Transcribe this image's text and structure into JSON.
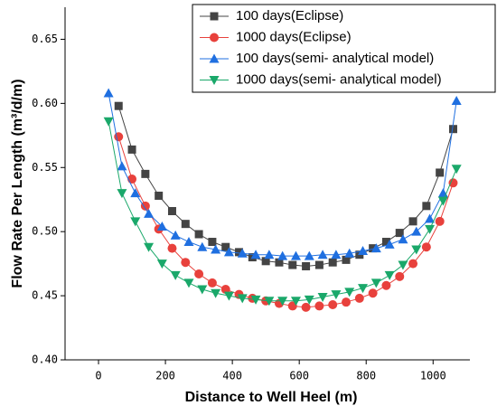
{
  "chart_data": {
    "type": "line",
    "xlabel": "Distance to Well Heel (m)",
    "ylabel": "Flow Rate Per Length (m³/d/m)",
    "xlim": [
      -100,
      1110
    ],
    "xticks": [
      0,
      200,
      400,
      600,
      800,
      1000
    ],
    "ylim": [
      0.4,
      0.675
    ],
    "yticks": [
      {
        "value": 0.4,
        "label": "0.40"
      },
      0.45,
      {
        "value": 0.5,
        "label": "0.50"
      },
      0.55,
      {
        "value": 0.6,
        "label": "0.60"
      },
      0.65
    ],
    "legend": "upper right",
    "series": [
      {
        "name": "100 days(Eclipse)",
        "color": "#444444",
        "marker": "square",
        "x": [
          60,
          100,
          140,
          180,
          220,
          260,
          300,
          340,
          380,
          420,
          460,
          500,
          540,
          580,
          620,
          660,
          700,
          740,
          780,
          820,
          860,
          900,
          940,
          980,
          1020,
          1060
        ],
        "values": [
          0.598,
          0.564,
          0.545,
          0.528,
          0.516,
          0.506,
          0.498,
          0.492,
          0.488,
          0.484,
          0.48,
          0.477,
          0.476,
          0.474,
          0.473,
          0.474,
          0.476,
          0.478,
          0.482,
          0.487,
          0.492,
          0.499,
          0.508,
          0.52,
          0.546,
          0.58
        ]
      },
      {
        "name": "1000 days(Eclipse)",
        "color": "#e8413c",
        "marker": "circle",
        "x": [
          60,
          100,
          140,
          180,
          220,
          260,
          300,
          340,
          380,
          420,
          460,
          500,
          540,
          580,
          620,
          660,
          700,
          740,
          780,
          820,
          860,
          900,
          940,
          980,
          1020,
          1060
        ],
        "values": [
          0.574,
          0.541,
          0.52,
          0.502,
          0.487,
          0.476,
          0.467,
          0.46,
          0.455,
          0.451,
          0.448,
          0.446,
          0.444,
          0.442,
          0.441,
          0.442,
          0.443,
          0.445,
          0.448,
          0.452,
          0.458,
          0.465,
          0.475,
          0.488,
          0.508,
          0.538
        ]
      },
      {
        "name": "100 days(semi- analytical model)",
        "color": "#1f6fe0",
        "marker": "triangle-up",
        "x": [
          30,
          70,
          110,
          150,
          190,
          230,
          270,
          310,
          350,
          390,
          430,
          470,
          510,
          550,
          590,
          630,
          670,
          710,
          750,
          790,
          830,
          870,
          910,
          950,
          990,
          1030,
          1070
        ],
        "values": [
          0.608,
          0.551,
          0.53,
          0.514,
          0.504,
          0.497,
          0.492,
          0.488,
          0.486,
          0.484,
          0.483,
          0.482,
          0.482,
          0.481,
          0.481,
          0.481,
          0.482,
          0.482,
          0.483,
          0.485,
          0.487,
          0.49,
          0.494,
          0.5,
          0.51,
          0.53,
          0.602
        ]
      },
      {
        "name": "1000 days(semi- analytical model)",
        "color": "#1aa86a",
        "marker": "triangle-down",
        "x": [
          30,
          70,
          110,
          150,
          190,
          230,
          270,
          310,
          350,
          390,
          430,
          470,
          510,
          550,
          590,
          630,
          670,
          710,
          750,
          790,
          830,
          870,
          910,
          950,
          990,
          1030,
          1070
        ],
        "values": [
          0.586,
          0.53,
          0.508,
          0.488,
          0.475,
          0.466,
          0.46,
          0.455,
          0.452,
          0.45,
          0.448,
          0.447,
          0.446,
          0.446,
          0.446,
          0.447,
          0.449,
          0.451,
          0.453,
          0.456,
          0.46,
          0.466,
          0.474,
          0.486,
          0.502,
          0.524,
          0.549
        ]
      }
    ]
  }
}
